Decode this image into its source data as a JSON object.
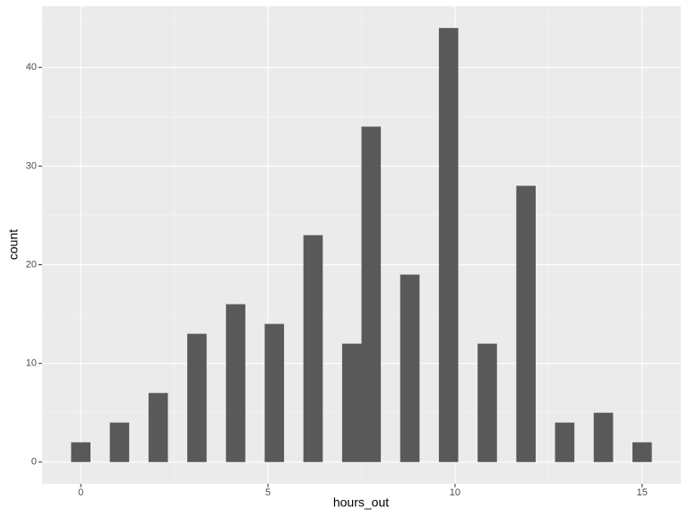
{
  "chart_data": {
    "type": "histogram",
    "x_label": "hours_out",
    "y_label": "count",
    "bins": [
      -0.2586,
      0.2586,
      0.7759,
      1.2931,
      1.8103,
      2.3276,
      2.8448,
      3.3621,
      3.8793,
      4.3966,
      4.9138,
      5.431,
      5.9483,
      6.4655,
      6.9828,
      7.5,
      8.0172,
      8.5345,
      9.0517,
      9.569,
      10.0862,
      10.6034,
      11.1207,
      11.6379,
      12.1552,
      12.6724,
      13.1897,
      13.7069,
      14.2241,
      14.7414,
      15.2586
    ],
    "counts": [
      2,
      0,
      4,
      0,
      7,
      0,
      13,
      0,
      16,
      0,
      14,
      0,
      23,
      0,
      12,
      34,
      0,
      19,
      0,
      44,
      0,
      12,
      0,
      28,
      0,
      4,
      0,
      5,
      0,
      2
    ],
    "color": "#595959",
    "xlim": [
      -1.034,
      16.034
    ],
    "xticks": [
      0,
      5,
      10,
      15
    ],
    "x_minor_grid": [
      2.5,
      7.5,
      12.5
    ],
    "ylim": [
      -2.2,
      46.2
    ],
    "yticks": [
      0,
      10,
      20,
      30,
      40
    ],
    "y_minor_grid": [
      5,
      15,
      25,
      35,
      45
    ],
    "grid": true
  }
}
